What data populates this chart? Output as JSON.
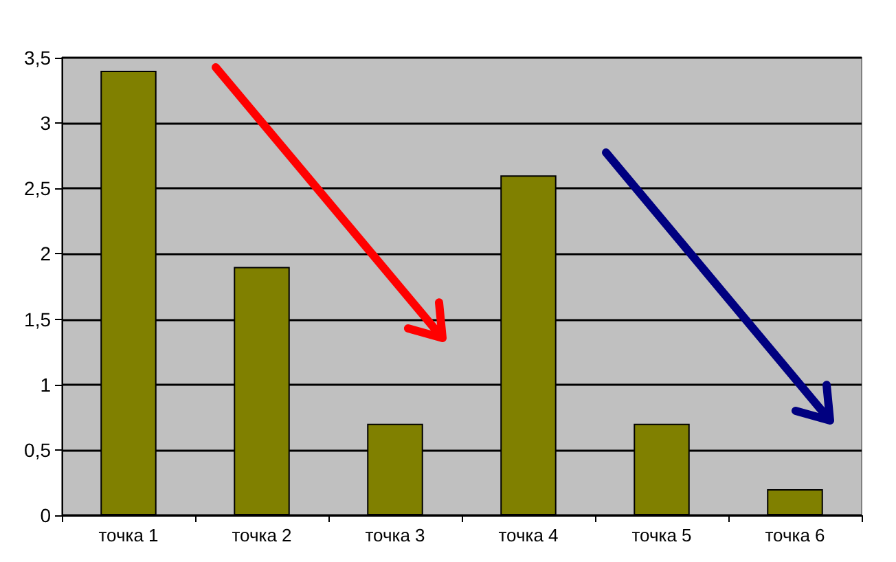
{
  "chart_data": {
    "type": "bar",
    "categories": [
      "точка 1",
      "точка 2",
      "точка 3",
      "точка 4",
      "точка 5",
      "точка 6"
    ],
    "values": [
      3.4,
      1.9,
      0.7,
      2.6,
      0.7,
      0.2
    ],
    "color": "#808000",
    "ylim": [
      0,
      3.5
    ],
    "yticks": [
      0,
      {
        "value": 0.5,
        "label": "0,5"
      },
      1,
      {
        "value": 1.5,
        "label": "1,5"
      },
      2,
      {
        "value": 2.5,
        "label": "2,5"
      },
      3,
      {
        "value": 3.5,
        "label": "3,5"
      }
    ],
    "grid": "y"
  }
}
